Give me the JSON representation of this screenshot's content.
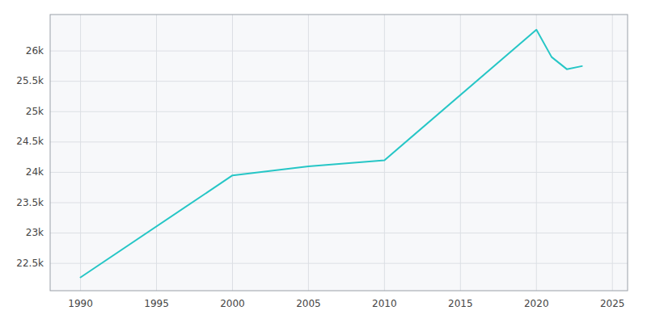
{
  "chart_data": {
    "type": "line",
    "x": [
      1990,
      2000,
      2005,
      2010,
      2020,
      2021,
      2022,
      2023
    ],
    "values": [
      22270,
      23950,
      24100,
      24200,
      26350,
      25900,
      25700,
      25750
    ],
    "color": "#26C6C6",
    "xlim": [
      1988,
      2026
    ],
    "ylim": [
      22050,
      26600
    ],
    "xticks": [
      1990,
      1995,
      2000,
      2005,
      2010,
      2015,
      2020,
      2025
    ],
    "yticks": [
      {
        "value": 22500,
        "label": "22.5k"
      },
      {
        "value": 23000,
        "label": "23k"
      },
      {
        "value": 23500,
        "label": "23.5k"
      },
      {
        "value": 24000,
        "label": "24k"
      },
      {
        "value": 24500,
        "label": "24.5k"
      },
      {
        "value": 25000,
        "label": "25k"
      },
      {
        "value": 25500,
        "label": "25.5k"
      },
      {
        "value": 26000,
        "label": "26k"
      }
    ],
    "grid": true
  }
}
